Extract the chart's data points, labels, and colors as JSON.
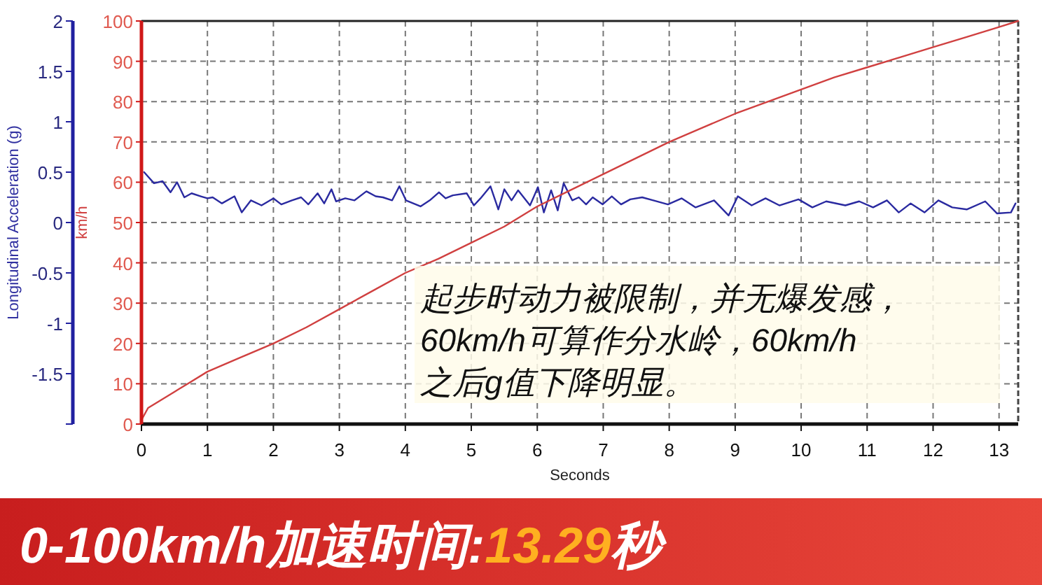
{
  "chart_data": {
    "type": "line",
    "xlabel": "Seconds",
    "ylabel": "Longitudinal Acceleration (g)",
    "y2label": "km/h",
    "xlim": [
      0,
      13.29
    ],
    "xticks": [
      0,
      1,
      2,
      3,
      4,
      5,
      6,
      7,
      8,
      9,
      10,
      11,
      12,
      13
    ],
    "ylim": [
      -2,
      2
    ],
    "yticks": [
      {
        "value": -2,
        "label": null
      },
      -1.5,
      -1,
      -0.5,
      0,
      0.5,
      1,
      1.5,
      2
    ],
    "y2lim": [
      0,
      100
    ],
    "y2ticks": [
      0,
      10,
      20,
      30,
      40,
      50,
      60,
      70,
      80,
      90,
      100
    ],
    "grid": true,
    "series": [
      {
        "color": "#2a2aa0",
        "x": [
          0.04,
          0.19,
          0.32,
          0.44,
          0.54,
          0.65,
          0.76,
          0.9,
          1.0,
          1.08,
          1.22,
          1.41,
          1.52,
          1.66,
          1.82,
          2.0,
          2.12,
          2.28,
          2.42,
          2.53,
          2.67,
          2.77,
          2.88,
          2.95,
          3.09,
          3.23,
          3.41,
          3.55,
          3.66,
          3.8,
          3.91,
          4.01,
          4.23,
          4.37,
          4.51,
          4.61,
          4.72,
          4.93,
          5.04,
          5.14,
          5.29,
          5.41,
          5.5,
          5.61,
          5.71,
          5.89,
          6.01,
          6.1,
          6.21,
          6.31,
          6.4,
          6.53,
          6.63,
          6.74,
          6.84,
          6.99,
          7.13,
          7.27,
          7.41,
          7.59,
          7.76,
          7.98,
          8.19,
          8.4,
          8.68,
          8.9,
          9.04,
          9.25,
          9.46,
          9.67,
          9.96,
          10.17,
          10.38,
          10.67,
          10.88,
          11.09,
          11.3,
          11.48,
          11.66,
          11.87,
          12.08,
          12.29,
          12.51,
          12.79,
          12.97,
          13.18,
          13.25
        ],
        "values": [
          0.5,
          0.39,
          0.41,
          0.3,
          0.4,
          0.25,
          0.29,
          0.26,
          0.24,
          0.25,
          0.19,
          0.26,
          0.1,
          0.22,
          0.17,
          0.24,
          0.18,
          0.22,
          0.25,
          0.18,
          0.29,
          0.19,
          0.33,
          0.21,
          0.24,
          0.22,
          0.31,
          0.26,
          0.25,
          0.22,
          0.36,
          0.22,
          0.16,
          0.22,
          0.3,
          0.24,
          0.27,
          0.29,
          0.17,
          0.24,
          0.36,
          0.13,
          0.33,
          0.22,
          0.32,
          0.17,
          0.35,
          0.1,
          0.32,
          0.12,
          0.39,
          0.22,
          0.25,
          0.18,
          0.25,
          0.18,
          0.26,
          0.18,
          0.23,
          0.25,
          0.22,
          0.18,
          0.24,
          0.15,
          0.22,
          0.07,
          0.26,
          0.17,
          0.24,
          0.17,
          0.23,
          0.15,
          0.21,
          0.17,
          0.21,
          0.15,
          0.22,
          0.1,
          0.19,
          0.1,
          0.22,
          0.15,
          0.13,
          0.21,
          0.09,
          0.1,
          0.19
        ]
      },
      {
        "color": "#d04040",
        "axis": "y2",
        "x": [
          0,
          0.1,
          0.5,
          0.7,
          1,
          1.5,
          2,
          2.5,
          3,
          3.5,
          4,
          4.5,
          5,
          5.5,
          6,
          6.5,
          7,
          7.5,
          8,
          8.5,
          9,
          9.5,
          10,
          10.5,
          11,
          11.5,
          12,
          12.5,
          13,
          13.29
        ],
        "values": [
          1,
          4,
          8,
          10,
          13,
          16.5,
          20,
          24,
          28.5,
          33,
          37.5,
          41,
          45,
          49,
          54,
          58,
          62,
          66,
          70,
          73.5,
          77,
          80,
          83,
          86,
          88.5,
          91,
          93.5,
          96,
          98.5,
          100
        ]
      }
    ],
    "annotations": [
      "起步时动力被限制，并无爆发感，\n60km/h可算作分水岭，60km/h\n之后g值下降明显。",
      "0-100km/h加速时间:13.29秒"
    ]
  }
}
